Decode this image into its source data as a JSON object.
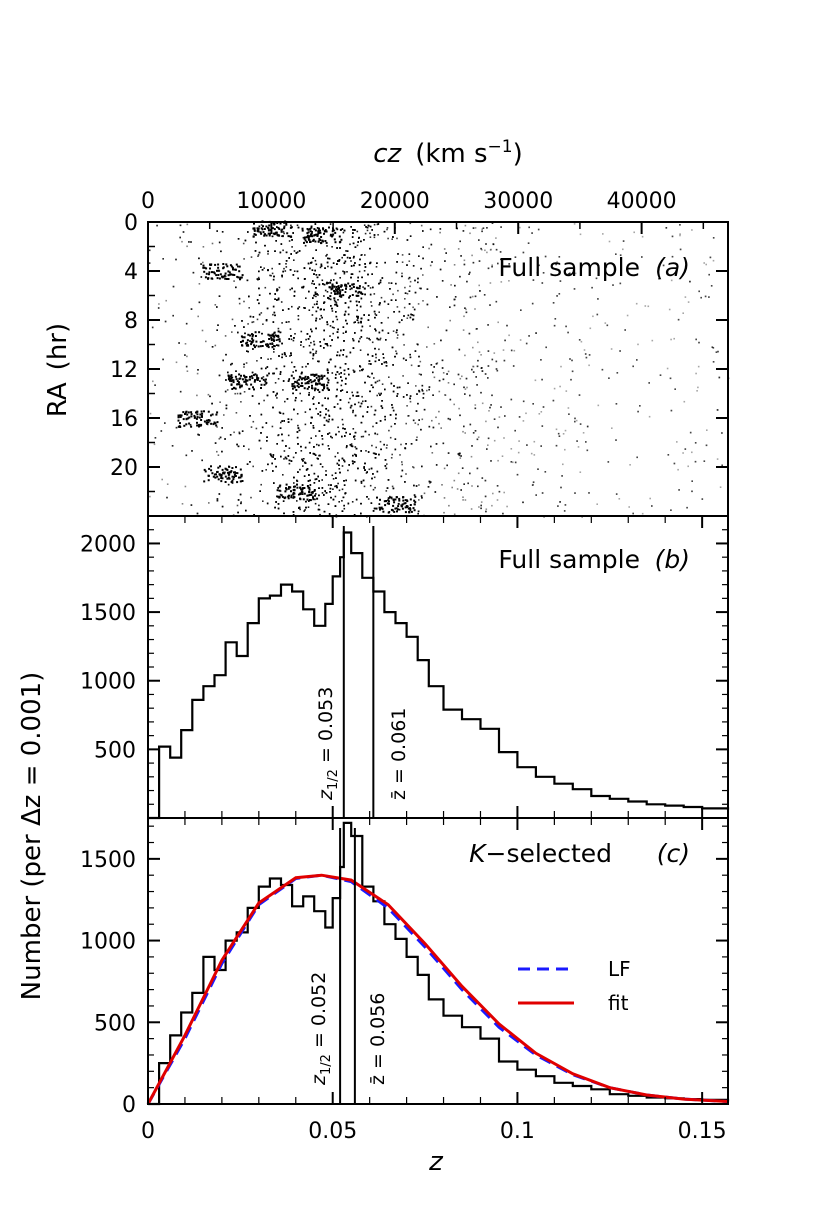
{
  "chart_data": [
    {
      "panel": "a",
      "type": "scatter",
      "title": "Full sample",
      "panel_tag": "(a)",
      "top_axis_label": "cz",
      "top_axis_unit": "(km s⁻¹)",
      "top_ticks": [
        "0",
        "10000",
        "20000",
        "30000",
        "40000"
      ],
      "top_tick_values": [
        0,
        10000,
        20000,
        30000,
        40000
      ],
      "xlim": [
        0,
        47000
      ],
      "ylabel": "RA",
      "ylabel_unit": "(hr)",
      "ylim": [
        0,
        24
      ],
      "y_ticks": [
        "0",
        "4",
        "8",
        "12",
        "16",
        "20"
      ],
      "y_tick_values": [
        0,
        4,
        8,
        12,
        16,
        20
      ],
      "description_density_peak_z": 0.05
    },
    {
      "panel": "b",
      "type": "line",
      "title": "Full sample",
      "panel_tag": "(b)",
      "xlim": [
        0,
        0.157
      ],
      "ylim": [
        0,
        2200
      ],
      "y_ticks": [
        "500",
        "1000",
        "1500",
        "2000"
      ],
      "y_tick_values": [
        500,
        1000,
        1500,
        2000
      ],
      "series": [
        {
          "name": "histogram",
          "x": [
            0.0,
            0.003,
            0.006,
            0.009,
            0.012,
            0.015,
            0.018,
            0.021,
            0.024,
            0.027,
            0.03,
            0.033,
            0.036,
            0.039,
            0.042,
            0.045,
            0.048,
            0.05,
            0.052,
            0.053,
            0.055,
            0.058,
            0.061,
            0.064,
            0.067,
            0.07,
            0.073,
            0.076,
            0.08,
            0.085,
            0.09,
            0.095,
            0.1,
            0.105,
            0.11,
            0.115,
            0.12,
            0.125,
            0.13,
            0.135,
            0.14,
            0.145,
            0.15,
            0.157
          ],
          "values": [
            0,
            520,
            440,
            640,
            860,
            960,
            1040,
            1280,
            1180,
            1420,
            1600,
            1620,
            1700,
            1650,
            1520,
            1400,
            1560,
            1760,
            1900,
            2080,
            1930,
            1750,
            1650,
            1500,
            1420,
            1320,
            1150,
            960,
            790,
            720,
            650,
            480,
            370,
            300,
            250,
            210,
            160,
            140,
            120,
            100,
            90,
            80,
            70,
            60
          ]
        }
      ],
      "markers": [
        {
          "label": "z1/2 = 0.053",
          "z": 0.053
        },
        {
          "label": "z̄ = 0.061",
          "z": 0.061
        }
      ]
    },
    {
      "panel": "c",
      "type": "line",
      "title": "K−selected",
      "panel_tag": "(c)",
      "xlabel": "z",
      "ylabel": "Number (per Δz = 0.001)",
      "xlim": [
        0,
        0.157
      ],
      "ylim": [
        0,
        1750
      ],
      "x_ticks": [
        "0",
        "0.05",
        "0.1",
        "0.15"
      ],
      "x_tick_values": [
        0,
        0.05,
        0.1,
        0.15
      ],
      "y_ticks": [
        "0",
        "500",
        "1000",
        "1500"
      ],
      "y_tick_values": [
        0,
        500,
        1000,
        1500
      ],
      "series": [
        {
          "name": "histogram",
          "x": [
            0.0,
            0.003,
            0.006,
            0.009,
            0.012,
            0.015,
            0.018,
            0.021,
            0.024,
            0.027,
            0.03,
            0.033,
            0.036,
            0.039,
            0.042,
            0.045,
            0.048,
            0.05,
            0.052,
            0.053,
            0.055,
            0.058,
            0.061,
            0.064,
            0.067,
            0.07,
            0.073,
            0.076,
            0.08,
            0.085,
            0.09,
            0.095,
            0.1,
            0.105,
            0.11,
            0.115,
            0.12,
            0.125,
            0.13,
            0.135,
            0.14,
            0.145,
            0.15,
            0.157
          ],
          "values": [
            0,
            250,
            420,
            560,
            680,
            900,
            820,
            1000,
            1050,
            1200,
            1330,
            1380,
            1340,
            1210,
            1270,
            1180,
            1080,
            1260,
            1450,
            1720,
            1640,
            1330,
            1240,
            1100,
            1010,
            900,
            790,
            640,
            540,
            470,
            400,
            260,
            210,
            170,
            130,
            110,
            90,
            60,
            50,
            40,
            35,
            30,
            25,
            15
          ]
        },
        {
          "name": "LF",
          "color": "#1a1aff",
          "x": [
            0.0,
            0.01,
            0.02,
            0.03,
            0.04,
            0.047,
            0.055,
            0.065,
            0.075,
            0.085,
            0.095,
            0.105,
            0.115,
            0.125,
            0.135,
            0.145,
            0.157
          ],
          "values": [
            0,
            400,
            860,
            1220,
            1380,
            1400,
            1360,
            1200,
            960,
            700,
            470,
            300,
            180,
            100,
            55,
            30,
            15
          ]
        },
        {
          "name": "fit",
          "color": "#e00000",
          "x": [
            0.0,
            0.01,
            0.02,
            0.03,
            0.04,
            0.047,
            0.055,
            0.065,
            0.075,
            0.085,
            0.095,
            0.105,
            0.115,
            0.125,
            0.135,
            0.145,
            0.157
          ],
          "values": [
            0,
            420,
            880,
            1230,
            1385,
            1400,
            1370,
            1220,
            980,
            720,
            490,
            310,
            185,
            100,
            55,
            30,
            15
          ]
        }
      ],
      "markers": [
        {
          "label": "z1/2 = 0.052",
          "z": 0.052
        },
        {
          "label": "z̄ = 0.056",
          "z": 0.056
        }
      ],
      "legend": [
        "LF",
        "fit"
      ],
      "legend_position": "right"
    }
  ],
  "labels": {
    "top_axis_italic": "cz",
    "top_axis_rest": "(km s",
    "top_axis_sup": "−1",
    "top_axis_close": ")",
    "panel_a_title": "Full sample",
    "panel_a_tag": "(a)",
    "panel_b_title": "Full sample",
    "panel_b_tag": "(b)",
    "panel_c_title": "−selected",
    "panel_c_k": "K",
    "panel_c_tag": "(c)",
    "ra_label": "RA",
    "ra_unit": "(hr)",
    "number_label": "Number (per Δz = 0.001)",
    "x_label": "z",
    "b_marker1_z": "z",
    "b_marker1_sub": "1/2",
    "b_marker1_val": " = 0.053",
    "b_marker2": "z̄ = 0.061",
    "c_marker1_z": "z",
    "c_marker1_sub": "1/2",
    "c_marker1_val": " = 0.052",
    "c_marker2": "z̄ = 0.056",
    "legend_lf": "LF",
    "legend_fit": "fit"
  }
}
